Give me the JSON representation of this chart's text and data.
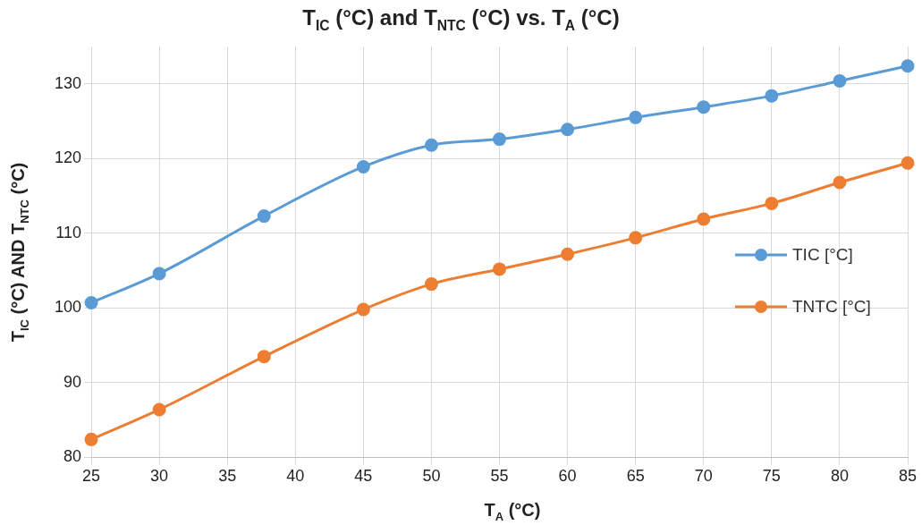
{
  "chart_data": {
    "type": "line",
    "title": "T$_{IC}$ (°C) and T$_{NTC}$ (°C) vs. T$_{A}$ (°C)",
    "xlabel": "T$_{A}$ (°C)",
    "ylabel": "T$_{IC}$ (°C) AND T$_{NTC}$ (°C)",
    "x": [
      25,
      30,
      37.7,
      45,
      50,
      55,
      60,
      65,
      70,
      75,
      80,
      85
    ],
    "series": [
      {
        "name": "TIC [°C]",
        "color": "#5b9bd5",
        "values": [
          100.7,
          104.6,
          112.3,
          118.9,
          121.8,
          122.6,
          123.9,
          125.5,
          126.9,
          128.4,
          130.4,
          132.4
        ]
      },
      {
        "name": "TNTC [°C]",
        "color": "#ed7d31",
        "values": [
          82.4,
          86.4,
          93.5,
          99.8,
          103.2,
          105.2,
          107.2,
          109.4,
          111.9,
          114.0,
          116.8,
          119.4
        ]
      }
    ],
    "xlim": [
      25,
      85
    ],
    "xticks": [
      25,
      30,
      35,
      40,
      45,
      50,
      55,
      60,
      65,
      70,
      75,
      80,
      85
    ],
    "ylim": [
      80,
      135
    ],
    "yticks": [
      80,
      90,
      100,
      110,
      120,
      130
    ],
    "grid": true,
    "legend": "right",
    "marker": "circle",
    "line_style": "solid"
  }
}
